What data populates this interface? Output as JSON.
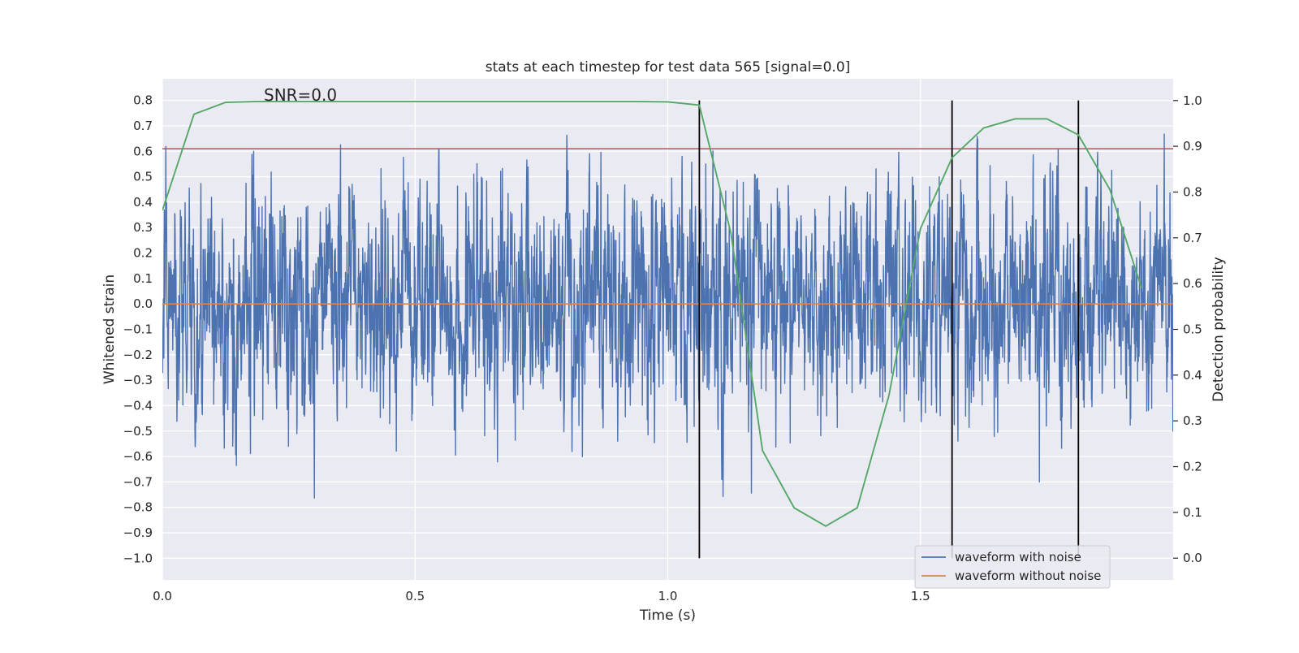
{
  "chart_data": {
    "type": "line",
    "title": "stats at each timestep for test data 565 [signal=0.0]",
    "annotation": "SNR=0.0",
    "xlabel": "Time (s)",
    "ylabel": "Whitened strain",
    "y2label": "Detection probability",
    "xlim": [
      0.0,
      2.0
    ],
    "ylim": [
      -1.085,
      0.885
    ],
    "y2lim": [
      -0.0475,
      1.0475
    ],
    "xticks": [
      0.0,
      0.5,
      1.0,
      1.5
    ],
    "xtick_labels": [
      "0.0",
      "0.5",
      "1.0",
      "1.5"
    ],
    "yticks": [
      0.8,
      0.7,
      0.6,
      0.5,
      0.4,
      0.3,
      0.2,
      0.1,
      0.0,
      -0.1,
      -0.2,
      -0.3,
      -0.4,
      -0.5,
      -0.6,
      -0.7,
      -0.8,
      -0.9,
      -1.0
    ],
    "ytick_labels": [
      "0.8",
      "0.7",
      "0.6",
      "0.5",
      "0.4",
      "0.3",
      "0.2",
      "0.1",
      "0.0",
      "−0.1",
      "−0.2",
      "−0.3",
      "−0.4",
      "−0.5",
      "−0.6",
      "−0.7",
      "−0.8",
      "−0.9",
      "−1.0"
    ],
    "y2ticks": [
      1.0,
      0.9,
      0.8,
      0.7,
      0.6,
      0.5,
      0.4,
      0.3,
      0.2,
      0.1,
      0.0
    ],
    "y2tick_labels": [
      "1.0",
      "0.9",
      "0.8",
      "0.7",
      "0.6",
      "0.5",
      "0.4",
      "0.3",
      "0.2",
      "0.1",
      "0.0"
    ],
    "grid": true,
    "legend_position": "bottom-right",
    "legend": [
      {
        "name": "waveform with noise",
        "color": "#4c72b0"
      },
      {
        "name": "waveform without noise",
        "color": "#dd8452"
      }
    ],
    "noise_series": {
      "name": "waveform with noise",
      "color": "#4c72b0",
      "sample_rate": 2048,
      "duration": 2.0,
      "std": 0.24,
      "seed": 565
    },
    "clean_series": {
      "name": "waveform without noise",
      "color": "#dd8452",
      "value": 0.0
    },
    "threshold_line": {
      "value": 0.61,
      "color": "#c44e52"
    },
    "detection_series": {
      "color": "#55a868",
      "x": [
        0.0,
        0.0625,
        0.125,
        0.1875,
        0.25,
        0.3125,
        0.375,
        0.4375,
        0.5,
        0.5625,
        0.625,
        0.6875,
        0.75,
        0.8125,
        0.875,
        0.9375,
        1.0,
        1.0625,
        1.125,
        1.1875,
        1.25,
        1.3125,
        1.375,
        1.4375,
        1.5,
        1.5625,
        1.625,
        1.6875,
        1.75,
        1.8125,
        1.875,
        1.9375
      ],
      "y": [
        0.76,
        0.97,
        0.996,
        0.998,
        0.998,
        0.998,
        0.998,
        0.998,
        0.998,
        0.998,
        0.998,
        0.998,
        0.998,
        0.998,
        0.998,
        0.998,
        0.997,
        0.99,
        0.71,
        0.235,
        0.11,
        0.07,
        0.11,
        0.355,
        0.72,
        0.875,
        0.94,
        0.96,
        0.96,
        0.925,
        0.805,
        0.59
      ]
    },
    "vertical_markers": {
      "x": [
        1.0625,
        1.5625,
        1.8125
      ],
      "ymin": -1.0,
      "ymax": 0.8,
      "color": "#000000"
    }
  }
}
